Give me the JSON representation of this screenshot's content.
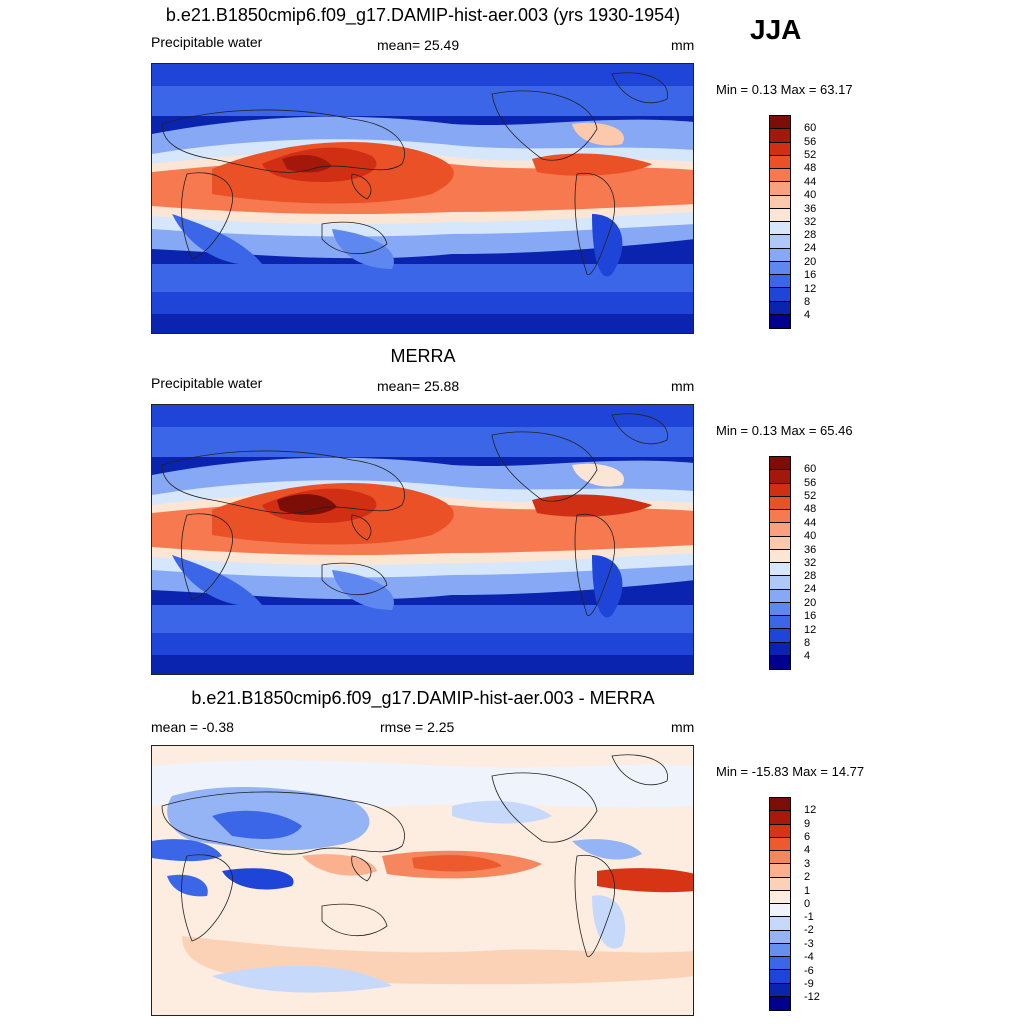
{
  "season": "JJA",
  "colors": {
    "abs_scale": [
      "#00008f",
      "#0b24b0",
      "#1f45d8",
      "#3b66e8",
      "#5e88f0",
      "#86a8f5",
      "#aec8f8",
      "#d6e6fb",
      "#fbe6d6",
      "#fcc9ad",
      "#fba07c",
      "#f6794f",
      "#eb5127",
      "#d12f14",
      "#a4180b",
      "#7d0e07"
    ],
    "diff_scale": [
      "#00008f",
      "#0b24b0",
      "#1f45d8",
      "#3b66e8",
      "#6590f0",
      "#95b4f6",
      "#c6d9fa",
      "#eef3fc",
      "#fdece0",
      "#fcd2b7",
      "#fbb18e",
      "#f6865e",
      "#ec5a2e",
      "#d63415",
      "#a9190b",
      "#7d0e07"
    ],
    "land_outline": "#222222"
  },
  "panels": [
    {
      "title": "b.e21.B1850cmip6.f09_g17.DAMIP-hist-aer.003 (yrs 1930-1954)",
      "left_label": "Precipitable water",
      "center_label": "mean=  25.49",
      "units": "mm",
      "minmax": "Min =   0.13 Max =  63.17",
      "colorbar_labels": [
        "60",
        "56",
        "52",
        "48",
        "44",
        "40",
        "36",
        "32",
        "28",
        "24",
        "20",
        "16",
        "12",
        "8",
        "4"
      ]
    },
    {
      "title": "MERRA",
      "left_label": "Precipitable water",
      "center_label": "mean=  25.88",
      "units": "mm",
      "minmax": "Min =   0.13 Max =  65.46",
      "colorbar_labels": [
        "60",
        "56",
        "52",
        "48",
        "44",
        "40",
        "36",
        "32",
        "28",
        "24",
        "20",
        "16",
        "12",
        "8",
        "4"
      ]
    },
    {
      "title": "b.e21.B1850cmip6.f09_g17.DAMIP-hist-aer.003 - MERRA",
      "left_label": "mean =  -0.38",
      "center_label": "rmse =   2.25",
      "units": "mm",
      "minmax": "Min = -15.83 Max =  14.77",
      "colorbar_labels": [
        "12",
        "9",
        "6",
        "4",
        "3",
        "2",
        "1",
        "0",
        "-1",
        "-2",
        "-3",
        "-4",
        "-6",
        "-9",
        "-12"
      ]
    }
  ]
}
